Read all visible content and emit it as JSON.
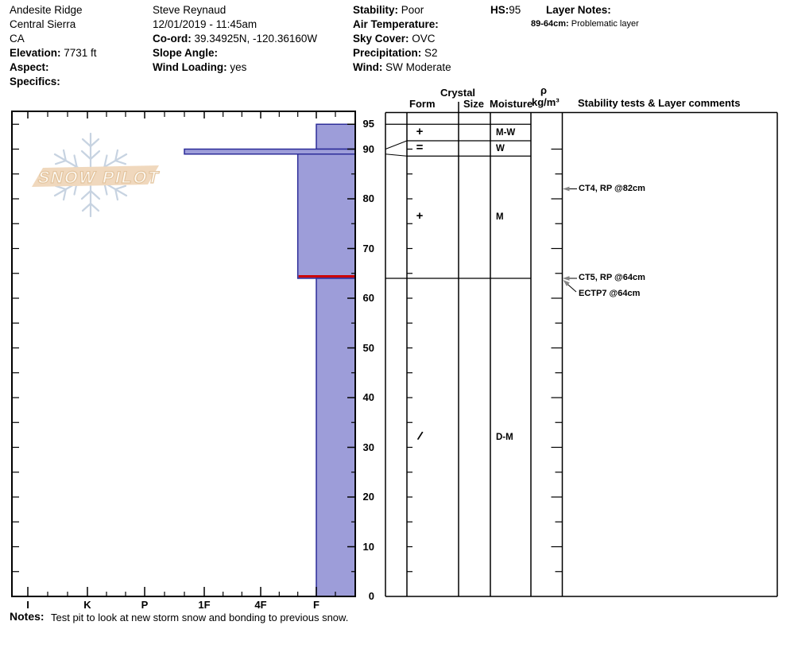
{
  "header": {
    "location": {
      "name": "Andesite Ridge",
      "region": "Central Sierra",
      "state": "CA",
      "elevation_label": "Elevation:",
      "elevation_value": " 7731 ft",
      "aspect_label": "Aspect:",
      "aspect_value": "",
      "specifics_label": "Specifics:",
      "specifics_value": ""
    },
    "observer": {
      "name": "Steve Reynaud",
      "datetime": "12/01/2019 - 11:45am",
      "coord_label": "Co-ord:",
      "coord_value": " 39.34925N, -120.36160W",
      "slope_angle_label": "Slope Angle:",
      "slope_angle_value": "",
      "wind_loading_label": "Wind Loading:",
      "wind_loading_value": " yes"
    },
    "conditions": {
      "stability_label": "Stability:",
      "stability_value": " Poor",
      "air_temp_label": "Air Temperature:",
      "air_temp_value": "",
      "sky_label": "Sky Cover:",
      "sky_value": " OVC",
      "precip_label": "Precipitation:",
      "precip_value": " S2",
      "wind_label": "Wind:",
      "wind_value": " SW Moderate"
    },
    "hs_label": "HS:",
    "hs_value": "95",
    "layer_notes_label": "Layer Notes:",
    "layer_note_range": "89-64cm:",
    "layer_note_text": " Problematic layer"
  },
  "watermark": {
    "text": "SNOW PILOT"
  },
  "table_headers": {
    "crystal": "Crystal",
    "form": "Form",
    "size": "Size",
    "moisture": "Moisture",
    "rho": "ρ",
    "rho_unit": "kg/m³",
    "comments": "Stability tests & Layer comments"
  },
  "notes": {
    "label": "Notes:",
    "text": "Test pit to look at new storm snow and bonding to previous snow."
  },
  "chart_data": {
    "type": "bar",
    "subtype": "snow-hardness-profile",
    "title": "Snow pit hardness profile",
    "depth_axis": {
      "unit": "cm",
      "min": 0,
      "max": 97.5,
      "tick_step_cm": 5,
      "labels": [
        95,
        90,
        80,
        70,
        60,
        50,
        40,
        30,
        20,
        10,
        0
      ]
    },
    "hardness_axis": {
      "categories": [
        "I",
        "K",
        "P",
        "1F",
        "4F",
        "F"
      ]
    },
    "total_height_cm": 95,
    "layers": [
      {
        "top_cm": 95,
        "bottom_cm": 90,
        "hardness": "F",
        "form": "+",
        "moisture": "M-W",
        "problematic": false
      },
      {
        "top_cm": 90,
        "bottom_cm": 89,
        "hardness": "1F+",
        "form": "=",
        "moisture": "W",
        "problematic": false
      },
      {
        "top_cm": 89,
        "bottom_cm": 64,
        "hardness": "F+",
        "form": "+",
        "moisture": "M",
        "problematic": true
      },
      {
        "top_cm": 64,
        "bottom_cm": 0,
        "hardness": "F",
        "form": "/",
        "moisture": "D-M",
        "problematic": false
      }
    ],
    "stability_tests": [
      {
        "label": "CT4, RP @82cm",
        "depth_cm": 82
      },
      {
        "label": "CT5, RP @64cm",
        "depth_cm": 64
      },
      {
        "label": "ECTP7 @64cm",
        "depth_cm": 64
      }
    ],
    "colors": {
      "bar_fill": "#9d9dd9",
      "bar_border": "#2d2d99",
      "problem_layer_line": "#cc0000",
      "arrow": "#858585",
      "snowflake": "#c7d3e1",
      "logo_band": "#f0d8bd"
    }
  }
}
